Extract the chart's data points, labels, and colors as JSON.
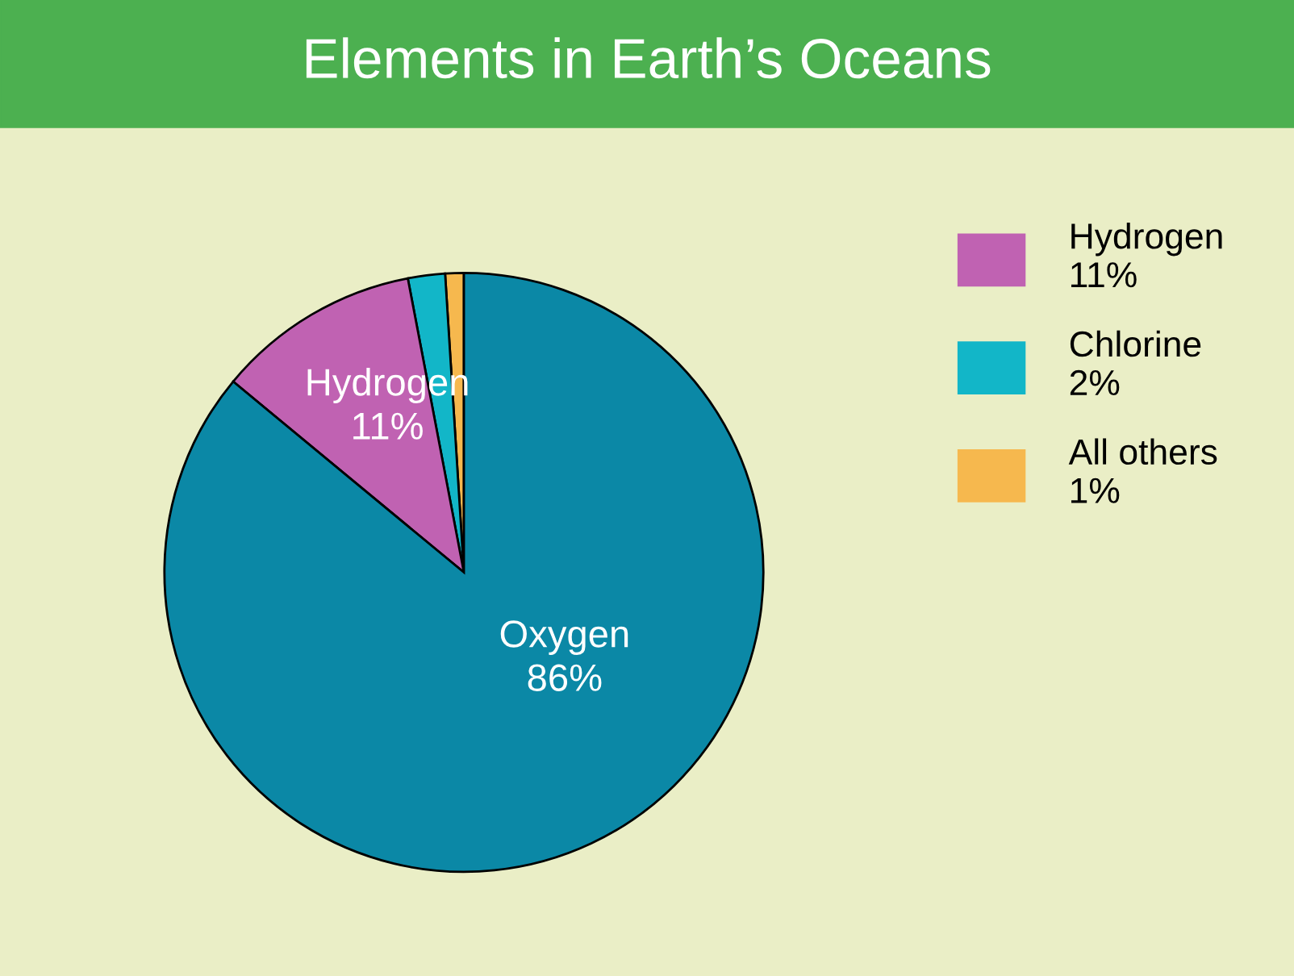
{
  "chart_data": {
    "type": "pie",
    "title": "Elements in Earth’s Oceans",
    "categories": [
      "Oxygen",
      "Hydrogen",
      "Chlorine",
      "All others"
    ],
    "values": [
      86,
      11,
      2,
      1
    ],
    "value_labels": [
      "86%",
      "11%",
      "2%",
      "1%"
    ],
    "colors": [
      "#0b88a6",
      "#c062b2",
      "#12b6c8",
      "#f6b84e"
    ],
    "legend": "right"
  }
}
